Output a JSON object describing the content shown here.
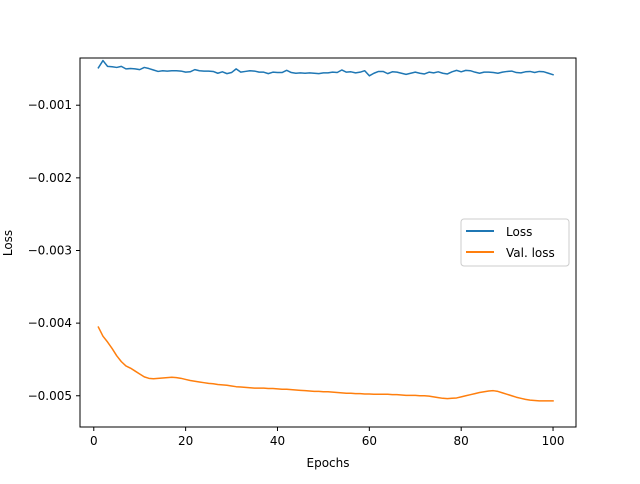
{
  "chart_data": {
    "type": "line",
    "title": "",
    "xlabel": "Epochs",
    "ylabel": "Loss",
    "xlim": [
      -3,
      105
    ],
    "ylim": [
      -0.00543,
      -0.00035
    ],
    "xticks": [
      0,
      20,
      40,
      60,
      80,
      100
    ],
    "xtick_labels": [
      "0",
      "20",
      "40",
      "60",
      "80",
      "100"
    ],
    "yticks": [
      -0.005,
      -0.004,
      -0.003,
      -0.002,
      -0.001
    ],
    "ytick_labels": [
      "−0.005",
      "−0.004",
      "−0.003",
      "−0.002",
      "−0.001"
    ],
    "grid": false,
    "legend_position": "center-right",
    "x": [
      1,
      2,
      3,
      4,
      5,
      6,
      7,
      8,
      9,
      10,
      11,
      12,
      13,
      14,
      15,
      16,
      17,
      18,
      19,
      20,
      21,
      22,
      23,
      24,
      25,
      26,
      27,
      28,
      29,
      30,
      31,
      32,
      33,
      34,
      35,
      36,
      37,
      38,
      39,
      40,
      41,
      42,
      43,
      44,
      45,
      46,
      47,
      48,
      49,
      50,
      51,
      52,
      53,
      54,
      55,
      56,
      57,
      58,
      59,
      60,
      61,
      62,
      63,
      64,
      65,
      66,
      67,
      68,
      69,
      70,
      71,
      72,
      73,
      74,
      75,
      76,
      77,
      78,
      79,
      80,
      81,
      82,
      83,
      84,
      85,
      86,
      87,
      88,
      89,
      90,
      91,
      92,
      93,
      94,
      95,
      96,
      97,
      98,
      99,
      100
    ],
    "series": [
      {
        "name": "Loss",
        "color": "#1f77b4",
        "values": [
          -0.000485,
          -0.000385,
          -0.000465,
          -0.00047,
          -0.00048,
          -0.000465,
          -0.0005,
          -0.000495,
          -0.0005,
          -0.00051,
          -0.00048,
          -0.000495,
          -0.000515,
          -0.000535,
          -0.000525,
          -0.00053,
          -0.000525,
          -0.000525,
          -0.00053,
          -0.000545,
          -0.00054,
          -0.00051,
          -0.000525,
          -0.00053,
          -0.00053,
          -0.000535,
          -0.00056,
          -0.00054,
          -0.000565,
          -0.00055,
          -0.0005,
          -0.000545,
          -0.000535,
          -0.000525,
          -0.00053,
          -0.000545,
          -0.000545,
          -0.000565,
          -0.000545,
          -0.00055,
          -0.00055,
          -0.00052,
          -0.00055,
          -0.00056,
          -0.000555,
          -0.00056,
          -0.000555,
          -0.00056,
          -0.000565,
          -0.000555,
          -0.000555,
          -0.000545,
          -0.00055,
          -0.000515,
          -0.000545,
          -0.00054,
          -0.000555,
          -0.000545,
          -0.000525,
          -0.000595,
          -0.00056,
          -0.000535,
          -0.000535,
          -0.000565,
          -0.00054,
          -0.000545,
          -0.00056,
          -0.000575,
          -0.00056,
          -0.000545,
          -0.00056,
          -0.00057,
          -0.000545,
          -0.000555,
          -0.00054,
          -0.00056,
          -0.00057,
          -0.00054,
          -0.00052,
          -0.00054,
          -0.00052,
          -0.000525,
          -0.000545,
          -0.00056,
          -0.000545,
          -0.000545,
          -0.00055,
          -0.00056,
          -0.000545,
          -0.000535,
          -0.00053,
          -0.00055,
          -0.000555,
          -0.00054,
          -0.000535,
          -0.00055,
          -0.000535,
          -0.00054,
          -0.00056,
          -0.00058
        ]
      },
      {
        "name": "Val. loss",
        "color": "#ff7f0e",
        "values": [
          -0.004055,
          -0.00418,
          -0.00426,
          -0.00435,
          -0.00445,
          -0.00453,
          -0.00459,
          -0.00462,
          -0.00466,
          -0.0047,
          -0.00474,
          -0.00476,
          -0.004765,
          -0.00476,
          -0.004755,
          -0.00475,
          -0.004745,
          -0.00475,
          -0.00476,
          -0.004775,
          -0.00479,
          -0.0048,
          -0.00481,
          -0.00482,
          -0.00483,
          -0.004835,
          -0.004845,
          -0.00485,
          -0.004855,
          -0.004865,
          -0.004875,
          -0.00488,
          -0.004885,
          -0.00489,
          -0.004895,
          -0.004895,
          -0.004895,
          -0.0049,
          -0.0049,
          -0.004905,
          -0.00491,
          -0.00491,
          -0.004915,
          -0.00492,
          -0.004925,
          -0.00493,
          -0.004935,
          -0.00494,
          -0.00494,
          -0.004945,
          -0.004945,
          -0.00495,
          -0.004955,
          -0.00496,
          -0.004965,
          -0.004965,
          -0.00497,
          -0.00497,
          -0.004975,
          -0.004975,
          -0.00498,
          -0.00498,
          -0.00498,
          -0.00498,
          -0.004985,
          -0.004985,
          -0.00499,
          -0.004995,
          -0.004995,
          -0.004995,
          -0.005,
          -0.005,
          -0.005005,
          -0.005015,
          -0.005025,
          -0.005035,
          -0.00504,
          -0.005035,
          -0.00503,
          -0.005015,
          -0.005,
          -0.004985,
          -0.00497,
          -0.004955,
          -0.004945,
          -0.004935,
          -0.00493,
          -0.00494,
          -0.00496,
          -0.00498,
          -0.005,
          -0.00502,
          -0.005035,
          -0.00505,
          -0.00506,
          -0.005065,
          -0.00507,
          -0.00507,
          -0.00507,
          -0.00507
        ]
      }
    ]
  }
}
